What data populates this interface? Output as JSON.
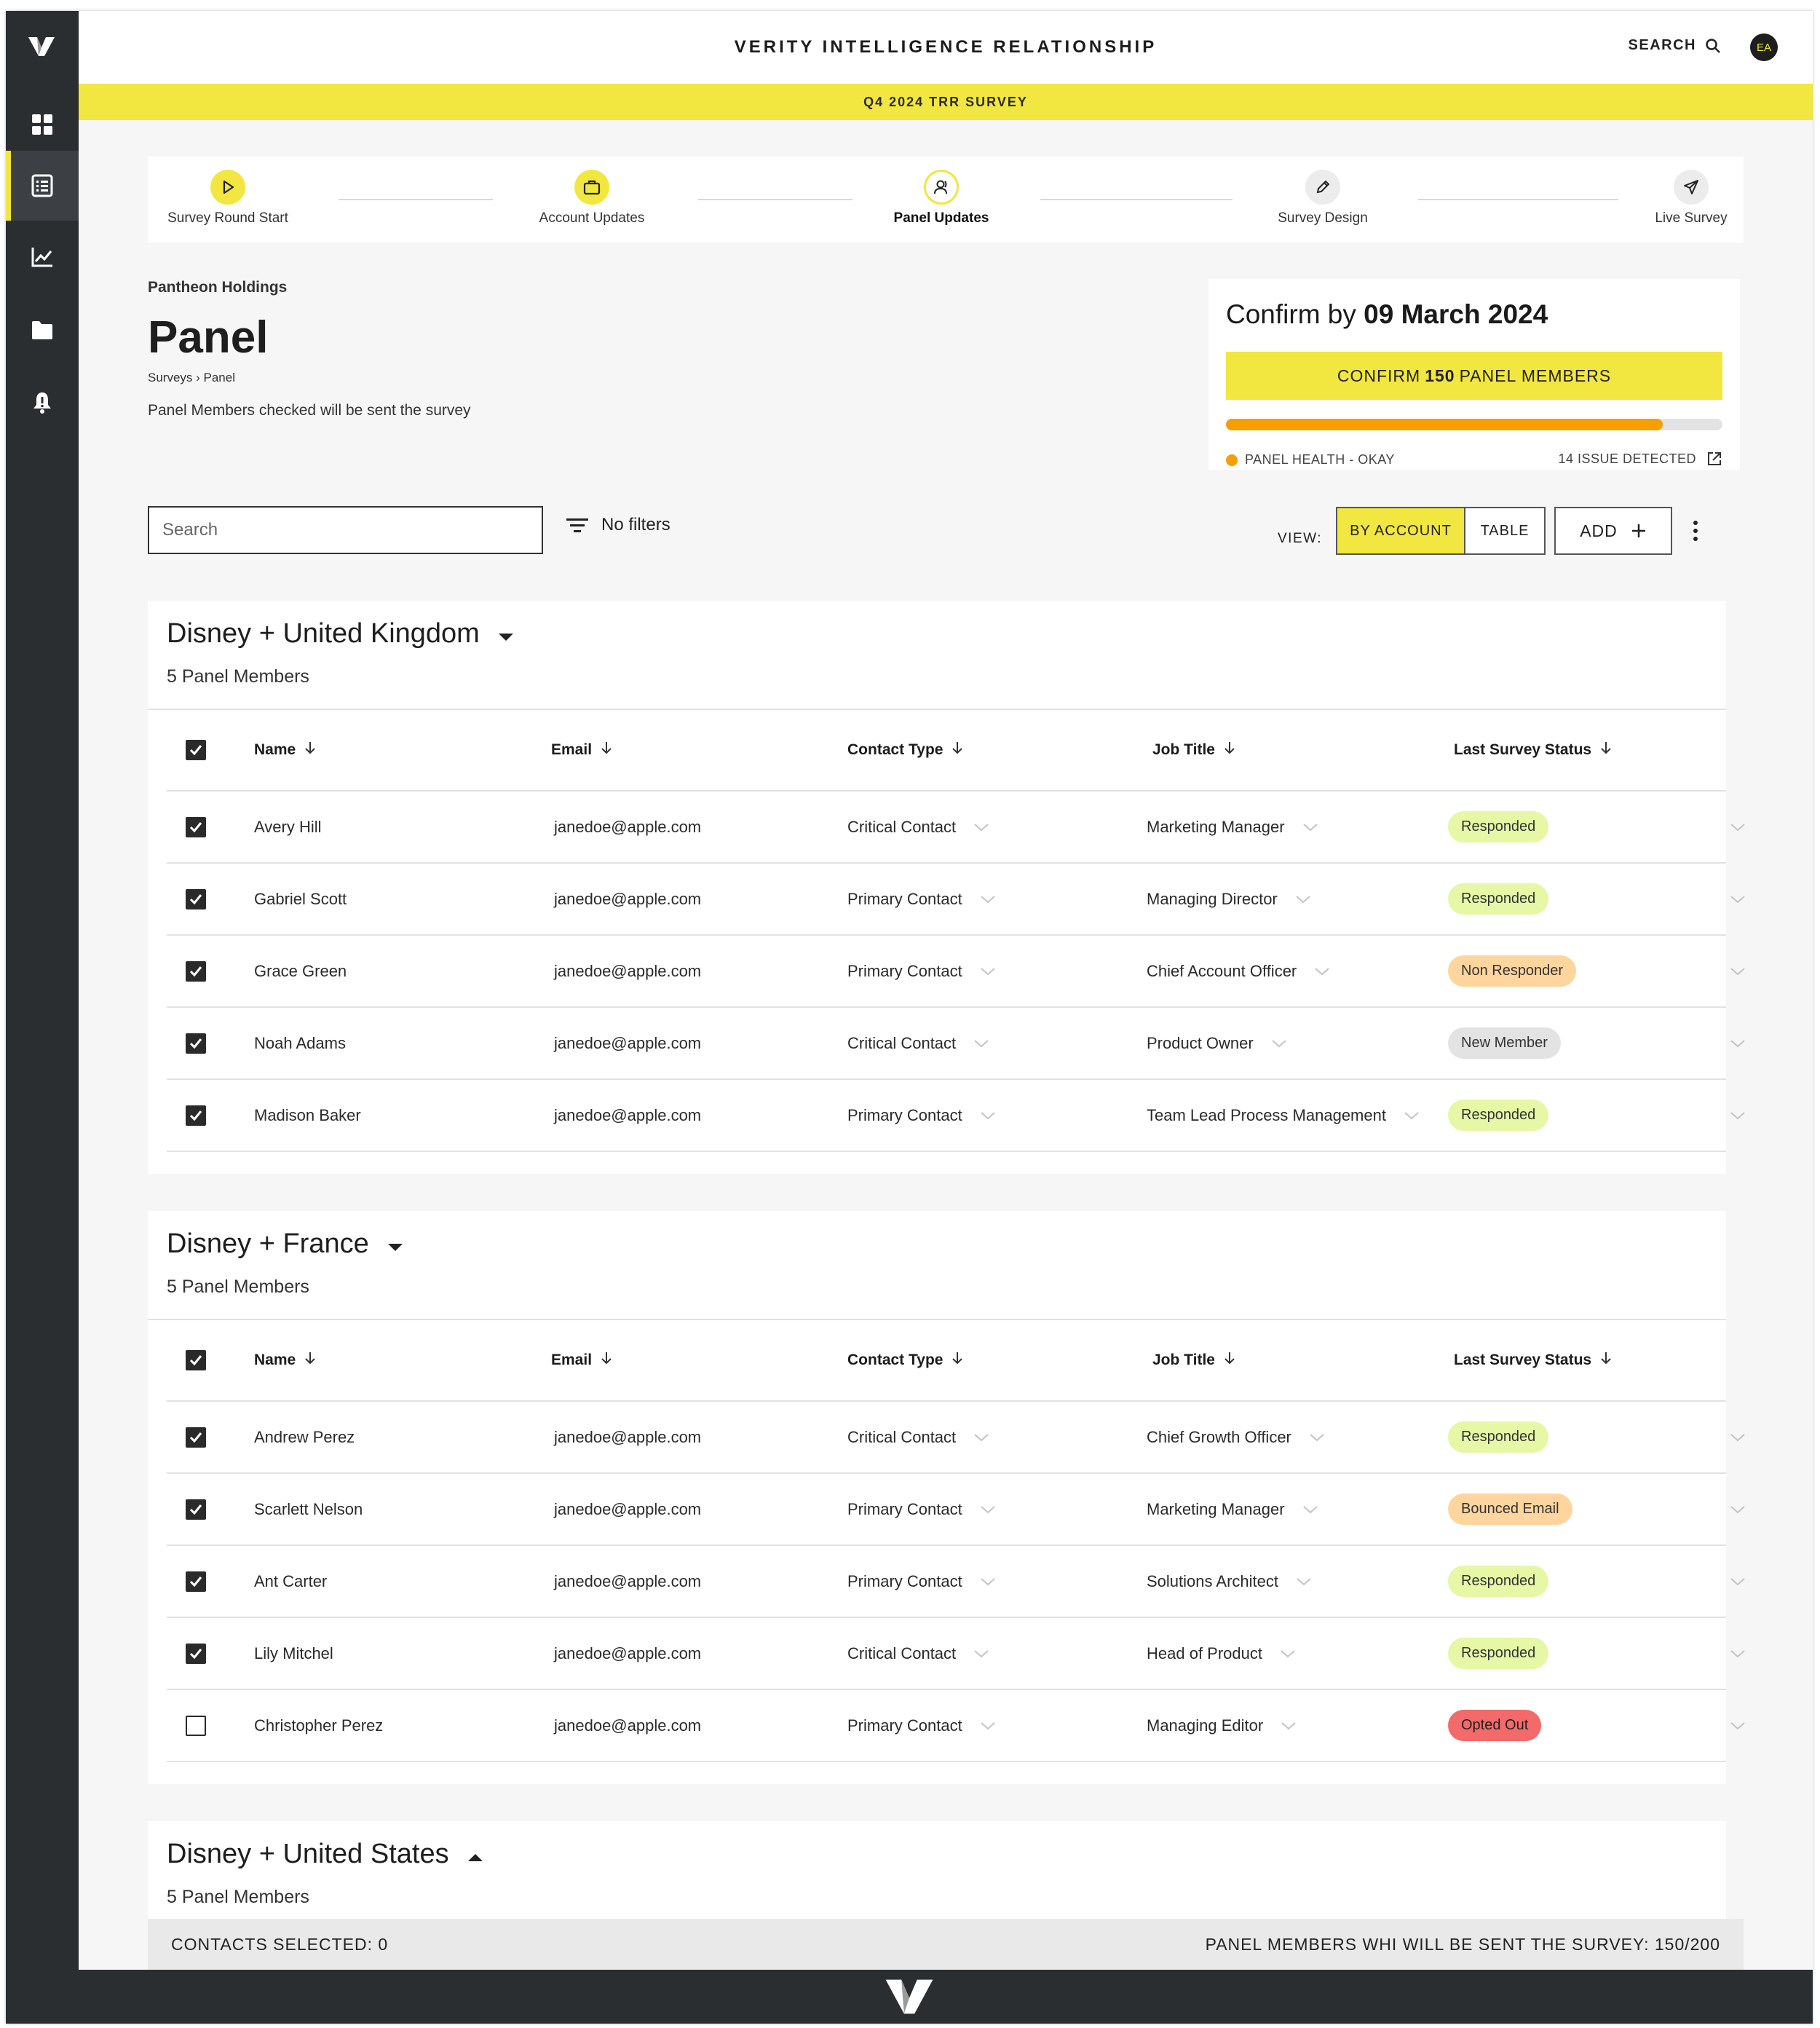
{
  "app": {
    "title": "VERITY INTELLIGENCE RELATIONSHIP",
    "search_label": "SEARCH",
    "user_initials": "EA",
    "banner": "Q4 2024 TRR SURVEY",
    "accent_color": "#f2e640"
  },
  "sidebar": {
    "items": [
      {
        "icon": "dashboard-icon"
      },
      {
        "icon": "survey-list-icon",
        "active": true
      },
      {
        "icon": "chart-icon"
      },
      {
        "icon": "folder-icon"
      },
      {
        "icon": "alert-bell-icon"
      }
    ]
  },
  "steps": [
    {
      "label": "Survey Round Start",
      "icon": "play-icon",
      "state": "done"
    },
    {
      "label": "Account Updates",
      "icon": "briefcase-icon",
      "state": "done"
    },
    {
      "label": "Panel Updates",
      "icon": "user-icon",
      "state": "current"
    },
    {
      "label": "Survey Design",
      "icon": "pencil-icon",
      "state": "todo"
    },
    {
      "label": "Live Survey",
      "icon": "send-icon",
      "state": "todo"
    }
  ],
  "page": {
    "org": "Pantheon Holdings",
    "title": "Panel",
    "breadcrumb": "Surveys › Panel",
    "description": "Panel Members checked will be sent the survey"
  },
  "confirm": {
    "prefix": "Confirm by",
    "date": "09 March 2024",
    "button_prefix": "CONFIRM",
    "button_count": "150",
    "button_suffix": "PANEL MEMBERS",
    "progress": 0.88,
    "health": "PANEL HEALTH - OKAY",
    "issues": "14 ISSUE DETECTED"
  },
  "toolbar": {
    "search_placeholder": "Search",
    "filters_label": "No filters",
    "view_label": "VIEW:",
    "by_account": "BY ACCOUNT",
    "table": "TABLE",
    "add": "ADD"
  },
  "columns": [
    "Name",
    "Email",
    "Contact Type",
    "Job Title",
    "Last Survey Status"
  ],
  "groups": [
    {
      "title": "Disney + United Kingdom",
      "count": "5 Panel Members",
      "expanded": true,
      "rows": [
        {
          "checked": true,
          "name": "Avery Hill",
          "email": "janedoe@apple.com",
          "contact": "Critical Contact",
          "job": "Marketing Manager",
          "status": "Responded",
          "status_tone": "green"
        },
        {
          "checked": true,
          "name": "Gabriel Scott",
          "email": "janedoe@apple.com",
          "contact": "Primary Contact",
          "job": "Managing Director",
          "status": "Responded",
          "status_tone": "green"
        },
        {
          "checked": true,
          "name": "Grace Green",
          "email": "janedoe@apple.com",
          "contact": "Primary Contact",
          "job": "Chief Account Officer",
          "status": "Non Responder",
          "status_tone": "orange"
        },
        {
          "checked": true,
          "name": "Noah Adams",
          "email": "janedoe@apple.com",
          "contact": "Critical Contact",
          "job": "Product Owner",
          "status": "New Member",
          "status_tone": "grey"
        },
        {
          "checked": true,
          "name": "Madison Baker",
          "email": "janedoe@apple.com",
          "contact": "Primary Contact",
          "job": "Team Lead Process Management",
          "status": "Responded",
          "status_tone": "green"
        }
      ]
    },
    {
      "title": "Disney + France",
      "count": "5 Panel Members",
      "expanded": true,
      "rows": [
        {
          "checked": true,
          "name": "Andrew Perez",
          "email": "janedoe@apple.com",
          "contact": "Critical Contact",
          "job": "Chief Growth Officer",
          "status": "Responded",
          "status_tone": "green"
        },
        {
          "checked": true,
          "name": "Scarlett Nelson",
          "email": "janedoe@apple.com",
          "contact": "Primary Contact",
          "job": "Marketing Manager",
          "status": "Bounced Email",
          "status_tone": "orange"
        },
        {
          "checked": true,
          "name": "Ant Carter",
          "email": "janedoe@apple.com",
          "contact": "Primary Contact",
          "job": "Solutions Architect",
          "status": "Responded",
          "status_tone": "green"
        },
        {
          "checked": true,
          "name": "Lily Mitchel",
          "email": "janedoe@apple.com",
          "contact": "Critical Contact",
          "job": "Head of Product",
          "status": "Responded",
          "status_tone": "green"
        },
        {
          "checked": false,
          "name": "Christopher Perez",
          "email": "janedoe@apple.com",
          "contact": "Primary Contact",
          "job": "Managing Editor",
          "status": "Opted Out",
          "status_tone": "red"
        }
      ]
    },
    {
      "title": "Disney + United States",
      "count": "5 Panel Members",
      "expanded": false,
      "rows": []
    }
  ],
  "footer": {
    "selected": "CONTACTS SELECTED: 0",
    "summary": "PANEL MEMBERS WHI WILL BE SENT THE SURVEY: 150/200"
  }
}
